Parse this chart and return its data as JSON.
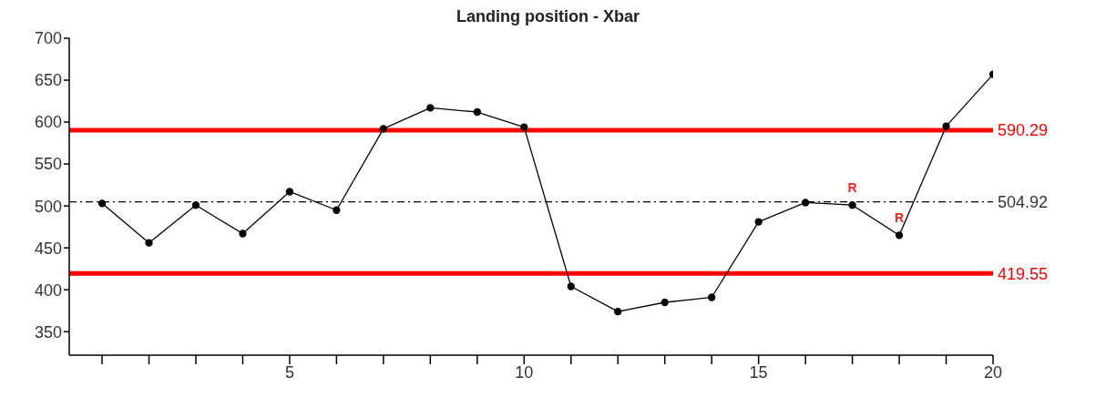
{
  "chart_data": {
    "type": "line",
    "title": "Landing position  - Xbar",
    "x": [
      1,
      2,
      3,
      4,
      5,
      6,
      7,
      8,
      9,
      10,
      11,
      12,
      13,
      14,
      15,
      16,
      17,
      18,
      19,
      20
    ],
    "series": [
      {
        "color": "#000000",
        "values": [
          503,
          456,
          501,
          467,
          517,
          495,
          592,
          617,
          612,
          594,
          404,
          374,
          385,
          391,
          481,
          504,
          501,
          465,
          595,
          657
        ]
      }
    ],
    "xlim": [
      0.3,
      20
    ],
    "xticks": [
      {
        "value": 1,
        "label": null
      },
      {
        "value": 2,
        "label": null
      },
      {
        "value": 3,
        "label": null
      },
      {
        "value": 4,
        "label": null
      },
      5,
      {
        "value": 6,
        "label": null
      },
      {
        "value": 7,
        "label": null
      },
      {
        "value": 8,
        "label": null
      },
      {
        "value": 9,
        "label": null
      },
      10,
      {
        "value": 11,
        "label": null
      },
      {
        "value": 12,
        "label": null
      },
      {
        "value": 13,
        "label": null
      },
      {
        "value": 14,
        "label": null
      },
      15,
      {
        "value": 16,
        "label": null
      },
      {
        "value": 17,
        "label": null
      },
      {
        "value": 18,
        "label": null
      },
      {
        "value": 19,
        "label": null
      },
      20
    ],
    "ylim": [
      322,
      700
    ],
    "yticks": [
      350,
      400,
      450,
      500,
      550,
      600,
      650,
      700
    ],
    "ref_lines": [
      {
        "axis": "y",
        "value": 590.29,
        "label": "590.29",
        "color": "#ff0000",
        "line_style": "solid"
      },
      {
        "axis": "y",
        "value": 504.92,
        "label": "504.92",
        "color": "#000000",
        "line_style": "dashdot"
      },
      {
        "axis": "y",
        "value": 419.55,
        "label": "419.55",
        "color": "#ff0000",
        "line_style": "solid"
      }
    ],
    "annotations": [
      {
        "text": "R",
        "x": 17,
        "y": 501
      },
      {
        "text": "R",
        "x": 18,
        "y": 465
      }
    ],
    "marker": "circle",
    "line_style": "solid",
    "grid": false,
    "legend": false
  }
}
